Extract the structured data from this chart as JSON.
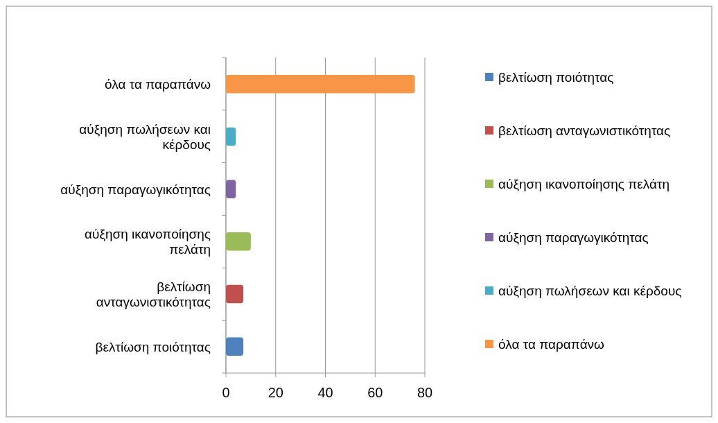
{
  "chart_data": {
    "type": "bar",
    "orientation": "horizontal",
    "categories": [
      "όλα τα παραπάνω",
      "αύξηση πωλήσεων και κέρδους",
      "αύξηση παραγωγικότητας",
      "αύξηση ικανοποίησης πελάτη",
      "βελτίωση ανταγωνιστικότητας",
      "βελτίωση ποιότητας"
    ],
    "series": [
      {
        "name": "βελτίωση ποιότητας",
        "color": "#4f81bd",
        "values": [
          null,
          null,
          null,
          null,
          null,
          7
        ]
      },
      {
        "name": "βελτίωση ανταγωνιστικότητας",
        "color": "#c0504d",
        "values": [
          null,
          null,
          null,
          null,
          7,
          null
        ]
      },
      {
        "name": "αύξηση ικανοποίησης πελάτη",
        "color": "#9bbb59",
        "values": [
          null,
          null,
          null,
          10,
          null,
          null
        ]
      },
      {
        "name": "αύξηση παραγωγικότητας",
        "color": "#8064a2",
        "values": [
          null,
          null,
          4,
          null,
          null,
          null
        ]
      },
      {
        "name": "αύξηση πωλήσεων και κέρδους",
        "color": "#4bacc6",
        "values": [
          null,
          4,
          null,
          null,
          null,
          null
        ]
      },
      {
        "name": "όλα τα παραπάνω",
        "color": "#f79646",
        "values": [
          76,
          null,
          null,
          null,
          null,
          null
        ]
      }
    ],
    "xlim": [
      0,
      80
    ],
    "xticks": [
      0,
      20,
      40,
      60,
      80
    ],
    "grid": "x",
    "legend": "right"
  }
}
